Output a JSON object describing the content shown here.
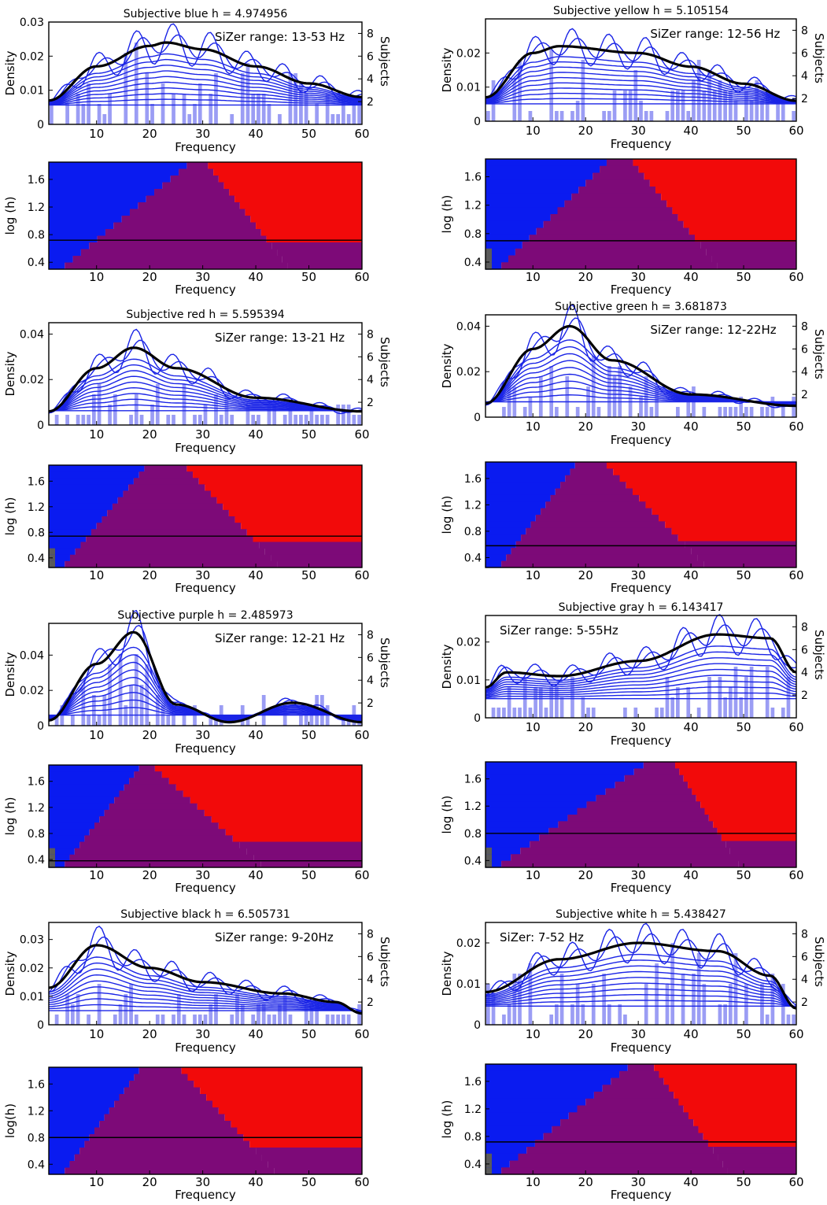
{
  "labels": {
    "xlabel": "Frequency",
    "density_ylabel": "Density",
    "subjects_ylabel": "Subjects",
    "sizer_ylabel": "log (h)",
    "sizer_ylabel_alt": "log(h)"
  },
  "colors": {
    "curve": "#1a24e6",
    "mean_curve": "#000000",
    "histogram": "#8a8cf2",
    "sizer_increasing": "#0a1bf0",
    "sizer_decreasing": "#f20a0a",
    "sizer_insignificant": "#7d0a78",
    "sizer_sparse": "#5a5a5a"
  },
  "chart_data": [
    {
      "type": "area",
      "title": "Subjective blue h = 4.974956",
      "annotation": "SiZer range: 13-53 Hz",
      "xlabel": "Frequency",
      "ylabel": "Density",
      "y2label": "Subjects",
      "xlim": [
        1,
        60
      ],
      "ylim": [
        0,
        0.03
      ],
      "yticks": [
        "0",
        "0.01",
        "0.02",
        "0.03"
      ],
      "y2ticks": [
        "2",
        "4",
        "6",
        "8"
      ],
      "xticks": [
        "10",
        "20",
        "30",
        "40",
        "50",
        "60"
      ],
      "mean_curve": {
        "x": [
          1,
          10,
          20,
          23,
          30,
          40,
          50,
          60
        ],
        "y": [
          0.007,
          0.017,
          0.023,
          0.024,
          0.022,
          0.017,
          0.012,
          0.008
        ]
      },
      "histogram": {
        "bins": [
          1,
          60
        ],
        "max_subjects": 6
      },
      "sizer": {
        "ylabel": "log (h)",
        "ylim": [
          0.3,
          1.85
        ],
        "yticks": [
          "0.4",
          "0.8",
          "1.2",
          "1.6"
        ],
        "bandwidth_line": 0.72,
        "increasing_until": 27,
        "decreasing_from": 32
      }
    },
    {
      "type": "area",
      "title": "Subjective yellow h = 5.105154",
      "annotation": "SiZer range: 12-56 Hz",
      "xlabel": "Frequency",
      "ylabel": "Density",
      "y2label": "Subjects",
      "xlim": [
        1,
        60
      ],
      "ylim": [
        0,
        0.03
      ],
      "yticks": [
        "0",
        "0.01",
        "0.02"
      ],
      "y2ticks": [
        "2",
        "4",
        "6",
        "8"
      ],
      "xticks": [
        "10",
        "20",
        "30",
        "40",
        "50",
        "60"
      ],
      "mean_curve": {
        "x": [
          1,
          10,
          15,
          30,
          40,
          50,
          60
        ],
        "y": [
          0.007,
          0.02,
          0.022,
          0.02,
          0.016,
          0.011,
          0.006
        ]
      },
      "histogram": {
        "bins": [
          1,
          60
        ],
        "max_subjects": 6
      },
      "sizer": {
        "ylabel": "log (h)",
        "ylim": [
          0.3,
          1.85
        ],
        "yticks": [
          "0.4",
          "0.8",
          "1.2",
          "1.6"
        ],
        "bandwidth_line": 0.7,
        "increasing_until": 24,
        "decreasing_from": 30
      }
    },
    {
      "type": "area",
      "title": "Subjective red h = 5.595394",
      "annotation": "SiZer range: 13-21 Hz",
      "xlabel": "Frequency",
      "ylabel": "Density",
      "y2label": "Subjects",
      "xlim": [
        1,
        60
      ],
      "ylim": [
        0,
        0.045
      ],
      "yticks": [
        "0",
        "0.02",
        "0.04"
      ],
      "y2ticks": [
        "2",
        "4",
        "6",
        "8"
      ],
      "xticks": [
        "10",
        "20",
        "30",
        "40",
        "50",
        "60"
      ],
      "mean_curve": {
        "x": [
          1,
          10,
          17,
          25,
          40,
          60
        ],
        "y": [
          0.006,
          0.025,
          0.034,
          0.025,
          0.012,
          0.006
        ]
      },
      "histogram": {
        "bins": [
          1,
          60
        ],
        "max_subjects": 4
      },
      "sizer": {
        "ylabel": "log (h)",
        "ylim": [
          0.25,
          1.85
        ],
        "yticks": [
          "0.4",
          "0.8",
          "1.2",
          "1.6"
        ],
        "bandwidth_line": 0.74,
        "increasing_until": 19,
        "decreasing_from": 28
      }
    },
    {
      "type": "area",
      "title": "Subjective green h = 3.681873",
      "annotation": "SiZer range: 12-22Hz",
      "xlabel": "Frequency",
      "ylabel": "Density",
      "y2label": "Subjects",
      "xlim": [
        1,
        60
      ],
      "ylim": [
        0,
        0.045
      ],
      "yticks": [
        "0",
        "0.02",
        "0.04"
      ],
      "y2ticks": [
        "2",
        "4",
        "6",
        "8"
      ],
      "xticks": [
        "10",
        "20",
        "30",
        "40",
        "50",
        "60"
      ],
      "mean_curve": {
        "x": [
          1,
          10,
          17,
          25,
          40,
          60
        ],
        "y": [
          0.006,
          0.03,
          0.04,
          0.025,
          0.01,
          0.005
        ]
      },
      "histogram": {
        "bins": [
          1,
          60
        ],
        "max_subjects": 5
      },
      "sizer": {
        "ylabel": "log (h)",
        "ylim": [
          0.25,
          1.85
        ],
        "yticks": [
          "0.4",
          "0.8",
          "1.2",
          "1.6"
        ],
        "bandwidth_line": 0.58,
        "increasing_until": 18,
        "decreasing_from": 25
      }
    },
    {
      "type": "area",
      "title": "Subjective purple h = 2.485973",
      "annotation": "SiZer range: 12-21 Hz",
      "xlabel": "Frequency",
      "ylabel": "Density",
      "y2label": "Subjects",
      "xlim": [
        1,
        60
      ],
      "ylim": [
        0,
        0.058
      ],
      "yticks": [
        "0",
        "0.02",
        "0.04"
      ],
      "y2ticks": [
        "2",
        "4",
        "6",
        "8"
      ],
      "xticks": [
        "10",
        "20",
        "30",
        "40",
        "50",
        "60"
      ],
      "mean_curve": {
        "x": [
          1,
          10,
          17,
          25,
          35,
          47,
          60
        ],
        "y": [
          0.003,
          0.035,
          0.053,
          0.012,
          0.002,
          0.013,
          0.002
        ]
      },
      "histogram": {
        "bins": [
          1,
          60
        ],
        "max_subjects": 6
      },
      "sizer": {
        "ylabel": "log (h)",
        "ylim": [
          0.28,
          1.85
        ],
        "yticks": [
          "0.4",
          "0.8",
          "1.2",
          "1.6"
        ],
        "bandwidth_line": 0.38,
        "increasing_until": 18,
        "decreasing_from": 22
      }
    },
    {
      "type": "area",
      "title": "Subjective gray h = 6.143417",
      "annotation": "SiZer range: 5-55Hz",
      "xlabel": "Frequency",
      "ylabel": "Density",
      "y2label": "Subjects",
      "xlim": [
        1,
        60
      ],
      "ylim": [
        0,
        0.027
      ],
      "yticks": [
        "0",
        "0.01",
        "0.02"
      ],
      "y2ticks": [
        "2",
        "4",
        "6",
        "8"
      ],
      "xticks": [
        "10",
        "20",
        "30",
        "40",
        "50",
        "60"
      ],
      "mean_curve": {
        "x": [
          1,
          5,
          15,
          30,
          45,
          55,
          60
        ],
        "y": [
          0.008,
          0.012,
          0.011,
          0.015,
          0.022,
          0.021,
          0.012
        ]
      },
      "histogram": {
        "bins": [
          1,
          60
        ],
        "max_subjects": 4
      },
      "sizer": {
        "ylabel": "log (h)",
        "ylim": [
          0.3,
          1.85
        ],
        "yticks": [
          "0.4",
          "0.8",
          "1.2",
          "1.6"
        ],
        "bandwidth_line": 0.8,
        "increasing_until": 31,
        "decreasing_from": 38
      }
    },
    {
      "type": "area",
      "title": "Subjective black h = 6.505731",
      "annotation": "SiZer range: 9-20Hz",
      "xlabel": "Frequency",
      "ylabel": "Density",
      "y2label": "Subjects",
      "xlim": [
        1,
        60
      ],
      "ylim": [
        0,
        0.036
      ],
      "yticks": [
        "0",
        "0.01",
        "0.02",
        "0.03"
      ],
      "y2ticks": [
        "2",
        "4",
        "6",
        "8"
      ],
      "xticks": [
        "10",
        "20",
        "30",
        "40",
        "50",
        "60"
      ],
      "mean_curve": {
        "x": [
          1,
          10,
          20,
          30,
          45,
          55,
          60
        ],
        "y": [
          0.013,
          0.028,
          0.02,
          0.015,
          0.011,
          0.008,
          0.004
        ]
      },
      "histogram": {
        "bins": [
          1,
          60
        ],
        "max_subjects": 4
      },
      "sizer": {
        "ylabel": "log(h)",
        "ylim": [
          0.25,
          1.85
        ],
        "yticks": [
          "0.4",
          "0.8",
          "1.2",
          "1.6"
        ],
        "bandwidth_line": 0.8,
        "increasing_until": 18,
        "decreasing_from": 27
      }
    },
    {
      "type": "area",
      "title": "Subjective white h = 5.438427",
      "annotation": "SiZer: 7-52 Hz",
      "xlabel": "Frequency",
      "ylabel": "Density",
      "y2label": "Subjects",
      "xlim": [
        1,
        60
      ],
      "ylim": [
        0,
        0.025
      ],
      "yticks": [
        "0",
        "0.01",
        "0.02"
      ],
      "y2ticks": [
        "2",
        "4",
        "6",
        "8"
      ],
      "xticks": [
        "10",
        "20",
        "30",
        "40",
        "50",
        "60"
      ],
      "mean_curve": {
        "x": [
          1,
          15,
          30,
          45,
          55,
          60
        ],
        "y": [
          0.008,
          0.016,
          0.02,
          0.018,
          0.012,
          0.004
        ]
      },
      "histogram": {
        "bins": [
          1,
          60
        ],
        "max_subjects": 6
      },
      "sizer": {
        "ylabel": "log (h)",
        "ylim": [
          0.25,
          1.85
        ],
        "yticks": [
          "0.4",
          "0.8",
          "1.2",
          "1.6"
        ],
        "bandwidth_line": 0.72,
        "increasing_until": 28,
        "decreasing_from": 34
      }
    }
  ]
}
